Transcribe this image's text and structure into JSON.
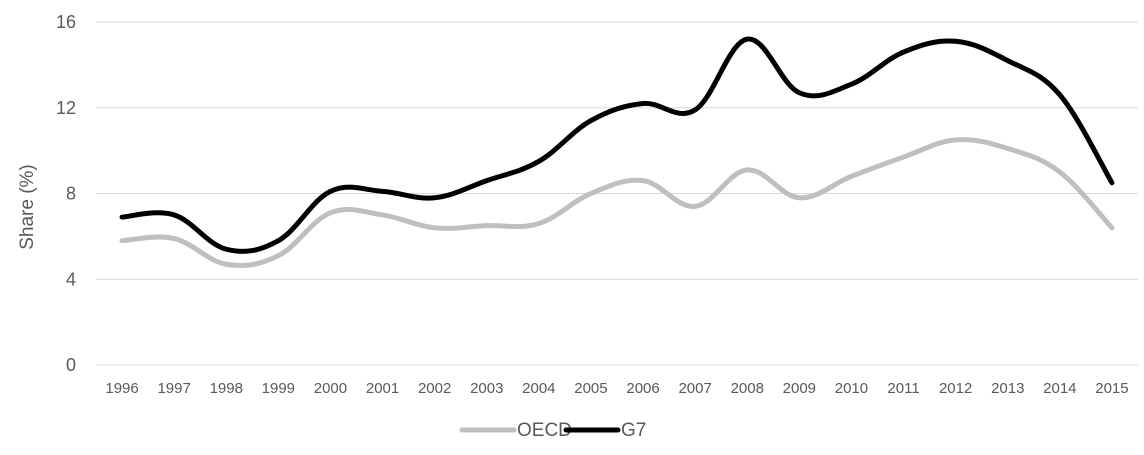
{
  "chart_data": {
    "type": "line",
    "title": "",
    "xlabel": "",
    "ylabel": "Share (%)",
    "ylim": [
      0,
      16
    ],
    "yticks": [
      "0",
      "4",
      "8",
      "12",
      "16"
    ],
    "grid": true,
    "legend_position": "bottom",
    "categories": [
      "1996",
      "1997",
      "1998",
      "1999",
      "2000",
      "2001",
      "2002",
      "2003",
      "2004",
      "2005",
      "2006",
      "2007",
      "2008",
      "2009",
      "2010",
      "2011",
      "2012",
      "2013",
      "2014",
      "2015"
    ],
    "series": [
      {
        "name": "OECD",
        "color": "#bfbfbf",
        "values": [
          5.8,
          5.9,
          4.7,
          5.1,
          7.1,
          7.0,
          6.4,
          6.5,
          6.6,
          8.0,
          8.6,
          7.4,
          9.1,
          7.8,
          8.8,
          9.7,
          10.5,
          10.1,
          9.0,
          6.4
        ]
      },
      {
        "name": "G7",
        "color": "#000000",
        "values": [
          6.9,
          7.0,
          5.4,
          5.8,
          8.1,
          8.1,
          7.8,
          8.6,
          9.5,
          11.4,
          12.2,
          11.9,
          15.2,
          12.7,
          13.1,
          14.6,
          15.1,
          14.2,
          12.6,
          8.5
        ]
      }
    ]
  }
}
